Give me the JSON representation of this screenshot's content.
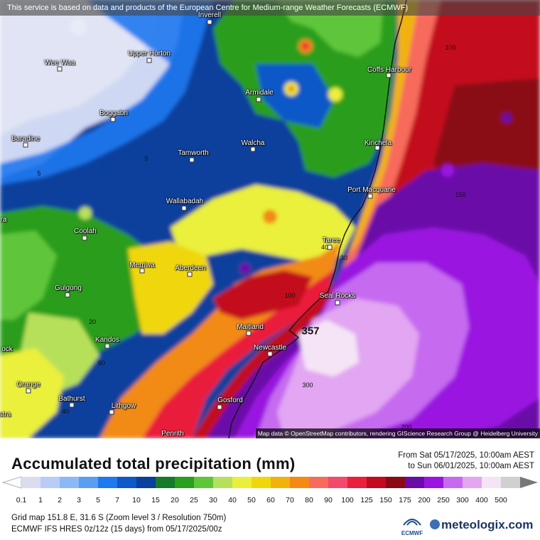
{
  "banner_text": "This service is based on data and products of the European Centre for Medium-range Weather Forecasts (ECMWF)",
  "map_attribution": "Map data © OpenStreetMap contributors, rendering GIScience Research Group @ Heidelberg University",
  "towns": [
    {
      "name": "Inverell"
    },
    {
      "name": "Upper Horton"
    },
    {
      "name": "Wee Waa"
    },
    {
      "name": "Coffs Harbour"
    },
    {
      "name": "Armidale"
    },
    {
      "name": "Boggabri"
    },
    {
      "name": "Baradine"
    },
    {
      "name": "Walcha"
    },
    {
      "name": "Kinchela"
    },
    {
      "name": "Tamworth"
    },
    {
      "name": "Port Macquarie"
    },
    {
      "name": "Wallabadah"
    },
    {
      "name": "Coolah"
    },
    {
      "name": "Taree"
    },
    {
      "name": "Merriwa"
    },
    {
      "name": "Aberdeen"
    },
    {
      "name": "Gulgong"
    },
    {
      "name": "Seal Rocks"
    },
    {
      "name": "Maitland"
    },
    {
      "name": "Newcastle"
    },
    {
      "name": "Kandos"
    },
    {
      "name": "Orange"
    },
    {
      "name": "Bathurst"
    },
    {
      "name": "Lithgow"
    },
    {
      "name": "Gosford"
    },
    {
      "name": "Penrith"
    },
    {
      "name": "ock"
    },
    {
      "name": "ra"
    },
    {
      "name": "stra"
    }
  ],
  "contour_labels": [
    "5",
    "5",
    "100",
    "150",
    "40",
    "30",
    "100",
    "20",
    "60",
    "40",
    "357",
    "300",
    "200"
  ],
  "title": "Accumulated total precipitation (mm)",
  "period_from": "From Sat 05/17/2025, 10:00am AEST",
  "period_to": "to Sun 06/01/2025, 10:00am AEST",
  "legend": {
    "labels": [
      "0.1",
      "1",
      "2",
      "3",
      "5",
      "7",
      "10",
      "15",
      "20",
      "25",
      "30",
      "40",
      "50",
      "60",
      "70",
      "80",
      "90",
      "100",
      "125",
      "150",
      "175",
      "200",
      "250",
      "300",
      "400",
      "500"
    ],
    "colors": [
      "#dcdcf0",
      "#b8ccf5",
      "#8cb8f5",
      "#5a9ef2",
      "#1e78ef",
      "#0f58c8",
      "#08409c",
      "#177a2a",
      "#2a9e1e",
      "#5fc63a",
      "#b7e05a",
      "#eaf03a",
      "#f0d70a",
      "#f2b20c",
      "#f28a14",
      "#f76b5c",
      "#f24a6a",
      "#ea1f3a",
      "#c30a1e",
      "#8a0a18",
      "#6a0ba8",
      "#9a16e0",
      "#c66af0",
      "#e2a6f2",
      "#f4e4f6",
      "#d0d0d0"
    ]
  },
  "grid_info": "Grid map 151.8 E, 31.6 S (Zoom level 3 / Resolution 750m)",
  "model_info": "ECMWF IFS HRES 0z/12z (15 days) from  05/17/2025/00z",
  "ecmwf_logo_text": "ECMWF",
  "brand": "meteologix.com"
}
